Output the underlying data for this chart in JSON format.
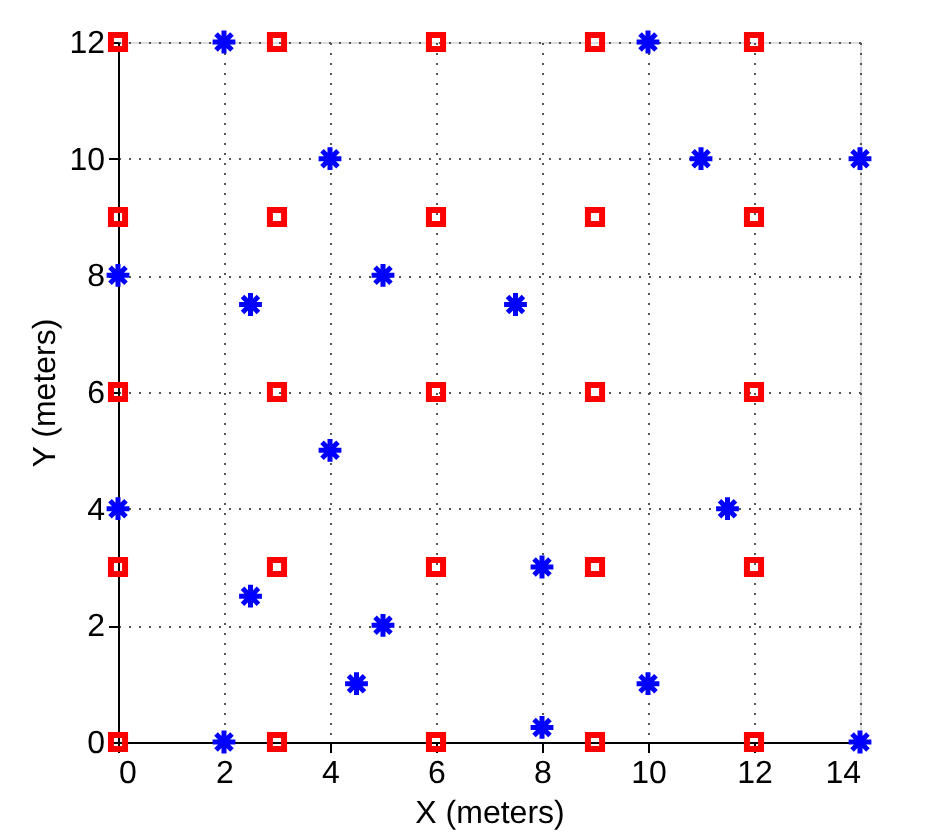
{
  "chart_data": {
    "type": "scatter",
    "xlabel": "X (meters)",
    "ylabel": "Y (meters)",
    "xlim": [
      0,
      14
    ],
    "ylim": [
      0,
      12
    ],
    "xticks": [
      0,
      2,
      4,
      6,
      8,
      10,
      12,
      14
    ],
    "yticks": [
      0,
      2,
      4,
      6,
      8,
      10,
      12
    ],
    "grid": true,
    "line_style": "dotted",
    "series": [
      {
        "color": "#ff0000",
        "marker": "square",
        "x": [
          0,
          3,
          6,
          9,
          12,
          0,
          3,
          6,
          9,
          12,
          0,
          3,
          6,
          9,
          12,
          0,
          3,
          6,
          9,
          12,
          0,
          3,
          6,
          9,
          12
        ],
        "values": [
          0,
          0,
          0,
          0,
          0,
          3,
          3,
          3,
          3,
          3,
          6,
          6,
          6,
          6,
          6,
          9,
          9,
          9,
          9,
          9,
          12,
          12,
          12,
          12,
          12
        ]
      },
      {
        "color": "#0000ff",
        "marker": "cross",
        "x": [
          2,
          10,
          4,
          11,
          14,
          0,
          5,
          2.5,
          7.5,
          4,
          0,
          11.5,
          8,
          2.5,
          5,
          4.5,
          10,
          8,
          2,
          14
        ],
        "values": [
          12,
          12,
          10,
          10,
          10,
          8,
          8,
          7.5,
          7.5,
          5,
          4,
          4,
          3,
          2.5,
          2,
          1,
          1,
          0.25,
          0,
          0
        ]
      }
    ]
  }
}
